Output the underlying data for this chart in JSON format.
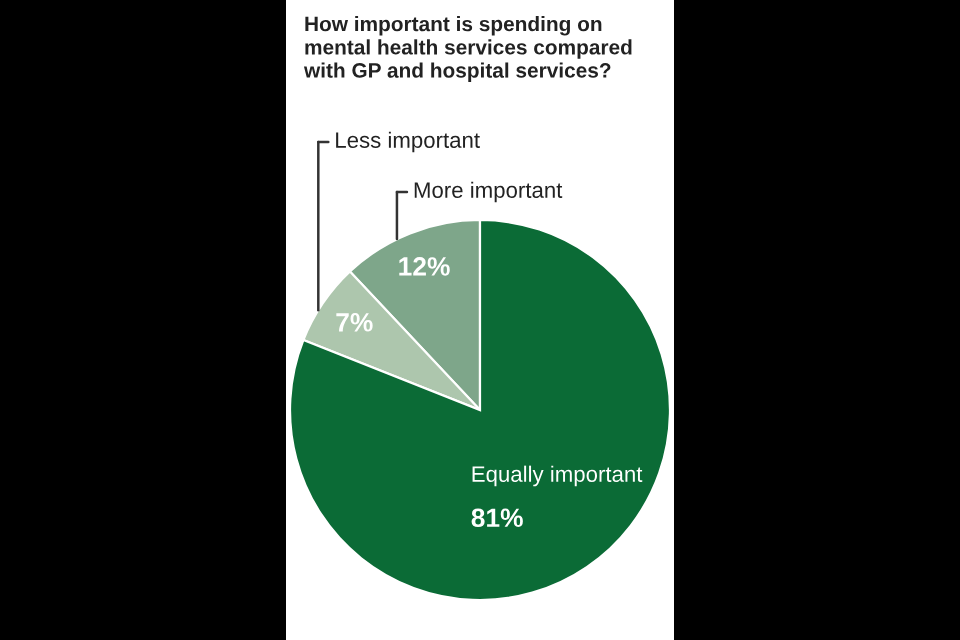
{
  "chart_data": {
    "type": "pie",
    "title": "How important is spending on\nmental health services compared\nwith GP and hospital services?",
    "categories": [
      "More important",
      "Less important",
      "Equally important"
    ],
    "values": [
      12,
      7,
      81
    ],
    "colors": [
      "#7ea68a",
      "#adc6ad",
      "#0b6b36"
    ],
    "value_labels": [
      "12%",
      "7%",
      "81%"
    ]
  }
}
